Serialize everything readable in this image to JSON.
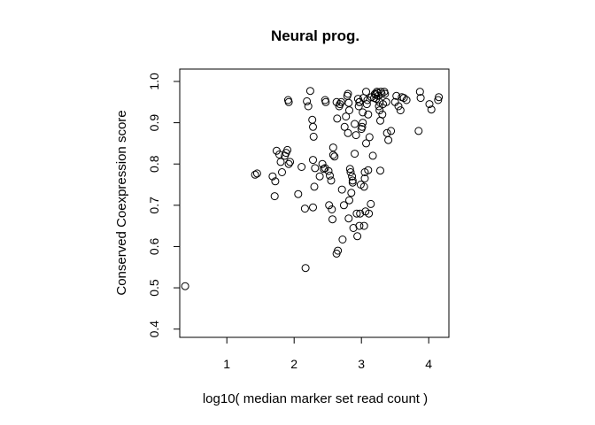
{
  "chart_data": {
    "type": "scatter",
    "title": "Neural prog.",
    "xlabel": "log10( median marker set read count )",
    "ylabel": "Conserved Coexpression score",
    "xlim": [
      0.3,
      4.3
    ],
    "ylim": [
      0.38,
      1.03
    ],
    "xticks": [
      1,
      2,
      3,
      4
    ],
    "yticks": [
      0.4,
      0.5,
      0.6,
      0.7,
      0.8,
      0.9,
      1.0
    ],
    "ytick_labels": [
      "0.4",
      "0.5",
      "0.6",
      "0.7",
      "0.8",
      "0.9",
      "1.0"
    ],
    "grid": false,
    "legend": "none",
    "points": [
      [
        0.38,
        0.504
      ],
      [
        1.42,
        0.774
      ],
      [
        1.45,
        0.777
      ],
      [
        1.68,
        0.77
      ],
      [
        1.71,
        0.722
      ],
      [
        1.72,
        0.758
      ],
      [
        1.74,
        0.832
      ],
      [
        1.78,
        0.823
      ],
      [
        1.8,
        0.805
      ],
      [
        1.82,
        0.78
      ],
      [
        1.86,
        0.82
      ],
      [
        1.88,
        0.827
      ],
      [
        1.9,
        0.834
      ],
      [
        1.92,
        0.8
      ],
      [
        1.94,
        0.805
      ],
      [
        1.92,
        0.95
      ],
      [
        1.91,
        0.955
      ],
      [
        2.06,
        0.727
      ],
      [
        2.11,
        0.793
      ],
      [
        2.16,
        0.692
      ],
      [
        2.17,
        0.548
      ],
      [
        2.19,
        0.952
      ],
      [
        2.21,
        0.94
      ],
      [
        2.24,
        0.977
      ],
      [
        2.27,
        0.907
      ],
      [
        2.28,
        0.89
      ],
      [
        2.29,
        0.866
      ],
      [
        2.28,
        0.81
      ],
      [
        2.3,
        0.745
      ],
      [
        2.28,
        0.695
      ],
      [
        2.31,
        0.79
      ],
      [
        2.38,
        0.77
      ],
      [
        2.42,
        0.8
      ],
      [
        2.44,
        0.788
      ],
      [
        2.46,
        0.79
      ],
      [
        2.47,
        0.95
      ],
      [
        2.46,
        0.955
      ],
      [
        2.51,
        0.783
      ],
      [
        2.53,
        0.772
      ],
      [
        2.55,
        0.76
      ],
      [
        2.52,
        0.7
      ],
      [
        2.56,
        0.69
      ],
      [
        2.57,
        0.666
      ],
      [
        2.58,
        0.84
      ],
      [
        2.58,
        0.822
      ],
      [
        2.6,
        0.818
      ],
      [
        2.63,
        0.583
      ],
      [
        2.65,
        0.59
      ],
      [
        2.63,
        0.95
      ],
      [
        2.64,
        0.91
      ],
      [
        2.67,
        0.94
      ],
      [
        2.68,
        0.945
      ],
      [
        2.7,
        0.95
      ],
      [
        2.71,
        0.738
      ],
      [
        2.72,
        0.617
      ],
      [
        2.74,
        0.7
      ],
      [
        2.75,
        0.89
      ],
      [
        2.77,
        0.915
      ],
      [
        2.79,
        0.965
      ],
      [
        2.8,
        0.97
      ],
      [
        2.81,
        0.948
      ],
      [
        2.82,
        0.93
      ],
      [
        2.8,
        0.875
      ],
      [
        2.81,
        0.668
      ],
      [
        2.82,
        0.712
      ],
      [
        2.83,
        0.788
      ],
      [
        2.84,
        0.78
      ],
      [
        2.85,
        0.73
      ],
      [
        2.86,
        0.77
      ],
      [
        2.87,
        0.755
      ],
      [
        2.87,
        0.76
      ],
      [
        2.88,
        0.645
      ],
      [
        2.9,
        0.897
      ],
      [
        2.9,
        0.825
      ],
      [
        2.92,
        0.87
      ],
      [
        2.93,
        0.68
      ],
      [
        2.94,
        0.625
      ],
      [
        2.95,
        0.958
      ],
      [
        2.96,
        0.94
      ],
      [
        2.97,
        0.95
      ],
      [
        2.97,
        0.95
      ],
      [
        2.97,
        0.65
      ],
      [
        2.98,
        0.68
      ],
      [
        2.99,
        0.75
      ],
      [
        3.0,
        0.885
      ],
      [
        3.01,
        0.89
      ],
      [
        3.02,
        0.9
      ],
      [
        3.02,
        0.925
      ],
      [
        3.03,
        0.96
      ],
      [
        3.04,
        0.65
      ],
      [
        3.04,
        0.745
      ],
      [
        3.05,
        0.765
      ],
      [
        3.05,
        0.78
      ],
      [
        3.06,
        0.685
      ],
      [
        3.07,
        0.85
      ],
      [
        3.07,
        0.975
      ],
      [
        3.08,
        0.945
      ],
      [
        3.09,
        0.955
      ],
      [
        3.1,
        0.92
      ],
      [
        3.1,
        0.785
      ],
      [
        3.11,
        0.68
      ],
      [
        3.12,
        0.865
      ],
      [
        3.14,
        0.703
      ],
      [
        3.15,
        0.962
      ],
      [
        3.17,
        0.82
      ],
      [
        3.19,
        0.96
      ],
      [
        3.2,
        0.97
      ],
      [
        3.21,
        0.968
      ],
      [
        3.22,
        0.958
      ],
      [
        3.23,
        0.975
      ],
      [
        3.24,
        0.972
      ],
      [
        3.25,
        0.965
      ],
      [
        3.26,
        0.94
      ],
      [
        3.27,
        0.95
      ],
      [
        3.27,
        0.93
      ],
      [
        3.28,
        0.905
      ],
      [
        3.28,
        0.784
      ],
      [
        3.29,
        0.975
      ],
      [
        3.3,
        0.97
      ],
      [
        3.31,
        0.92
      ],
      [
        3.32,
        0.945
      ],
      [
        3.34,
        0.975
      ],
      [
        3.35,
        0.97
      ],
      [
        3.37,
        0.95
      ],
      [
        3.38,
        0.875
      ],
      [
        3.4,
        0.858
      ],
      [
        3.44,
        0.88
      ],
      [
        3.5,
        0.95
      ],
      [
        3.52,
        0.965
      ],
      [
        3.55,
        0.94
      ],
      [
        3.58,
        0.93
      ],
      [
        3.6,
        0.962
      ],
      [
        3.63,
        0.96
      ],
      [
        3.67,
        0.955
      ],
      [
        3.85,
        0.88
      ],
      [
        3.87,
        0.975
      ],
      [
        3.88,
        0.96
      ],
      [
        4.01,
        0.945
      ],
      [
        4.04,
        0.932
      ],
      [
        4.14,
        0.955
      ],
      [
        4.15,
        0.962
      ]
    ]
  }
}
